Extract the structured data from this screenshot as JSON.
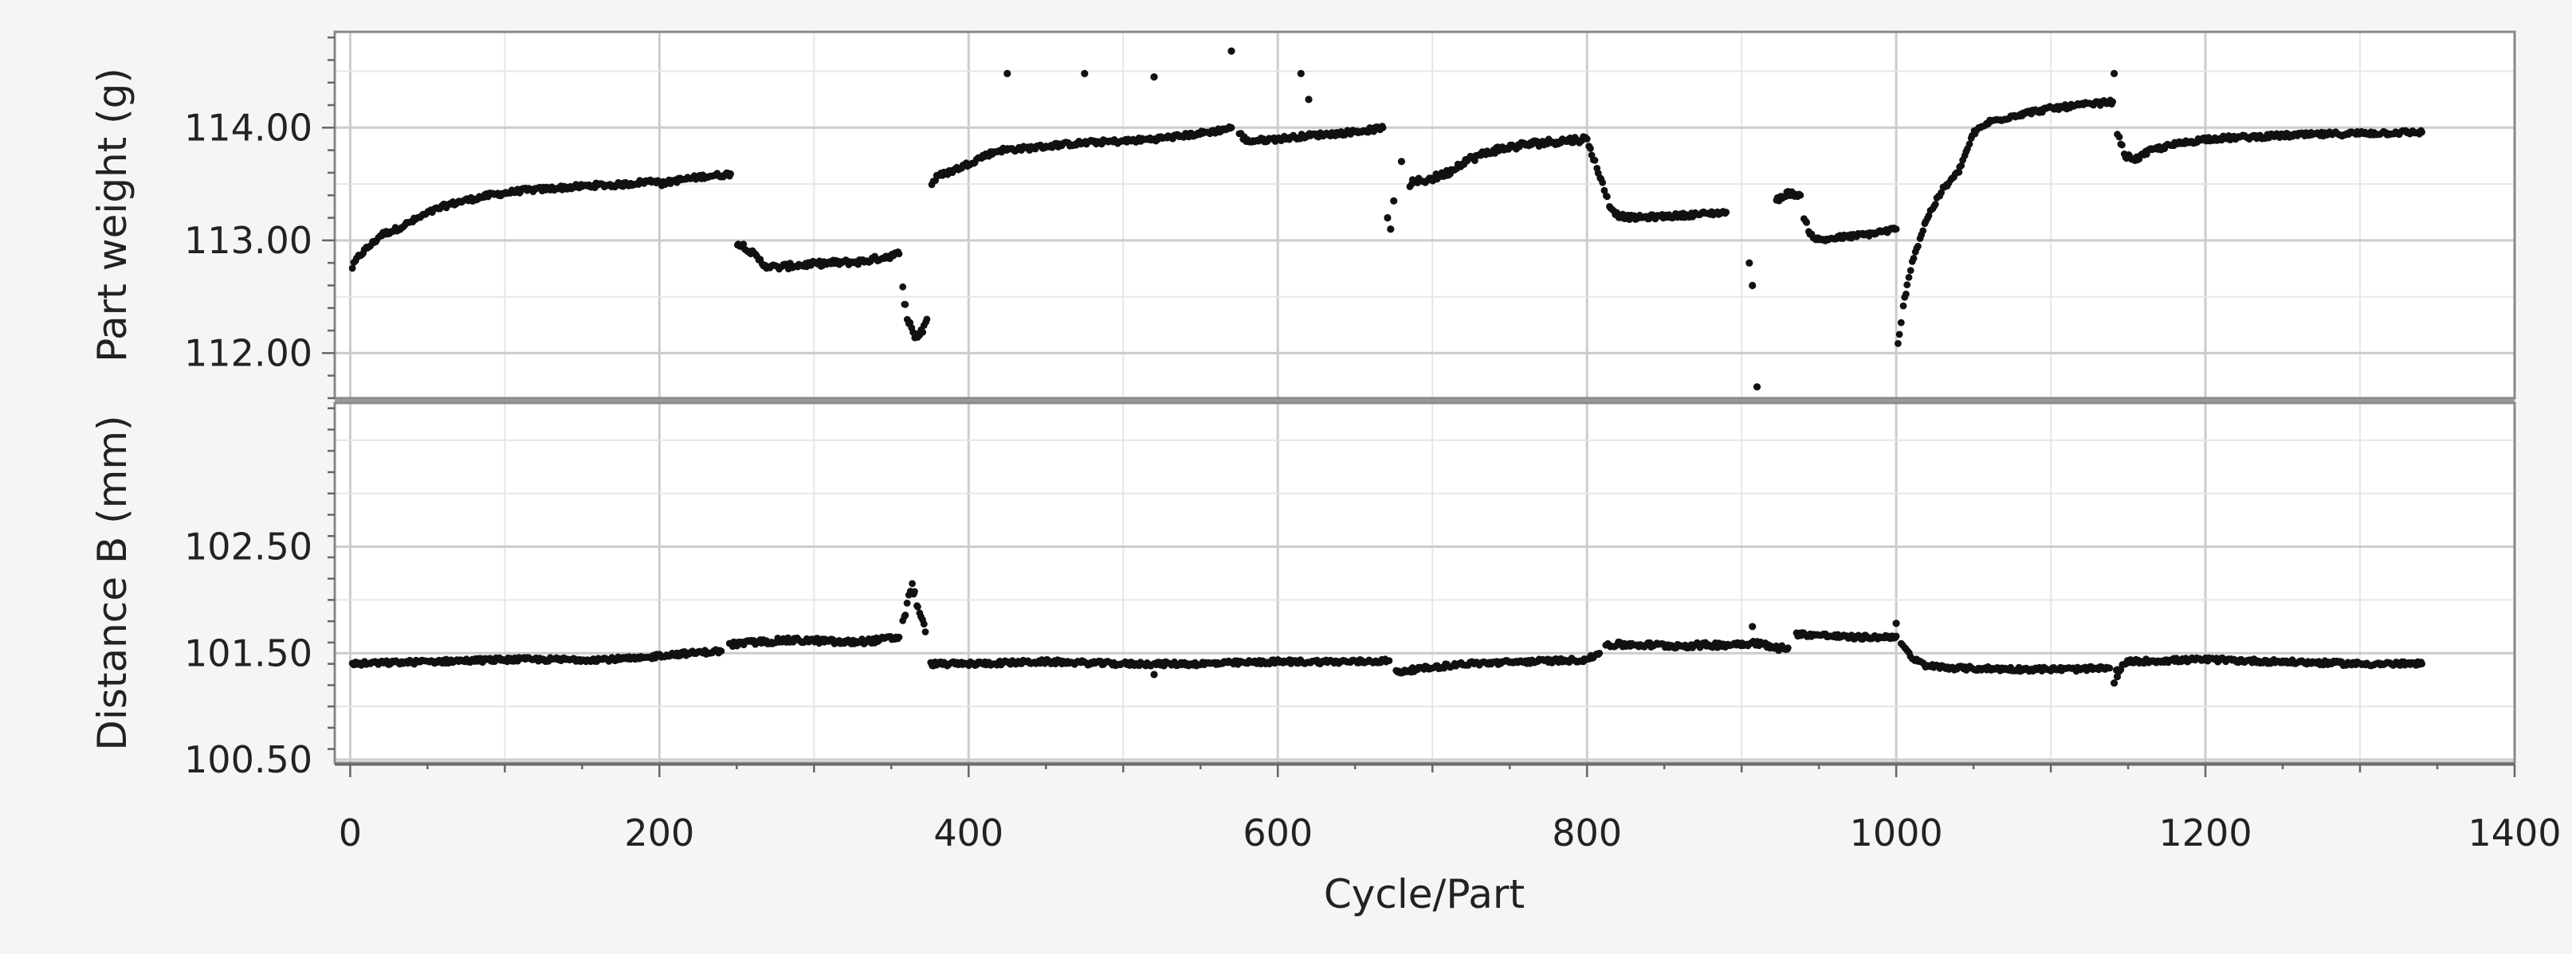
{
  "chart_data": {
    "type": "scatter",
    "xlabel": "Cycle/Part",
    "xlim": [
      -10,
      1400
    ],
    "x_ticks": [
      "0",
      "200",
      "400",
      "600",
      "800",
      "1000",
      "1200",
      "1400"
    ],
    "x_tick_values": [
      0,
      200,
      400,
      600,
      800,
      1000,
      1200,
      1400
    ],
    "grid": true,
    "marker_color": "#111111",
    "panels": [
      {
        "name": "top",
        "ylabel": "Part weight (g)",
        "ylim": [
          111.6,
          114.85
        ],
        "y_ticks": [
          "112.00",
          "113.00",
          "114.00"
        ],
        "y_tick_values": [
          112.0,
          113.0,
          114.0
        ],
        "segments": [
          {
            "x": [
              1,
              5,
              10,
              15,
              20,
              30,
              40,
              50,
              60,
              70,
              80,
              90,
              100,
              110,
              120,
              130,
              140,
              150,
              160,
              170,
              180,
              190,
              199
            ],
            "y": [
              112.75,
              112.85,
              112.92,
              112.98,
              113.05,
              113.1,
              113.17,
              113.24,
              113.3,
              113.34,
              113.37,
              113.4,
              113.42,
              113.44,
              113.45,
              113.46,
              113.47,
              113.48,
              113.49,
              113.49,
              113.5,
              113.52,
              113.53
            ],
            "noise": 0.02
          },
          {
            "x": [
              201,
              210,
              220,
              230,
              240,
              246
            ],
            "y": [
              113.5,
              113.53,
              113.55,
              113.57,
              113.58,
              113.59
            ],
            "noise": 0.02
          },
          {
            "x": [
              250,
              256,
              262,
              268,
              275,
              290,
              310,
              330,
              345,
              355
            ],
            "y": [
              112.98,
              112.94,
              112.86,
              112.78,
              112.76,
              112.78,
              112.8,
              112.81,
              112.85,
              112.88
            ],
            "noise": 0.025
          },
          {
            "x": [
              357,
              360,
              363,
              366,
              370,
              373
            ],
            "y": [
              112.6,
              112.35,
              112.2,
              112.15,
              112.2,
              112.3
            ],
            "noise": 0.04
          },
          {
            "x": [
              376,
              380,
              390,
              400,
              410,
              420,
              440,
              460,
              480,
              500,
              520,
              540,
              560,
              570
            ],
            "y": [
              113.5,
              113.57,
              113.62,
              113.68,
              113.75,
              113.8,
              113.82,
              113.85,
              113.87,
              113.88,
              113.9,
              113.93,
              113.97,
              114.0
            ],
            "noise": 0.02
          },
          {
            "x": [
              575,
              580,
              600,
              620,
              640,
              660,
              668
            ],
            "y": [
              113.95,
              113.88,
              113.9,
              113.93,
              113.95,
              113.98,
              114.0
            ],
            "noise": 0.02
          },
          {
            "x": [
              685,
              690,
              700,
              710,
              720,
              730,
              740,
              760,
              780,
              800
            ],
            "y": [
              113.5,
              113.52,
              113.55,
              113.6,
              113.7,
              113.75,
              113.8,
              113.85,
              113.88,
              113.9
            ],
            "noise": 0.03
          },
          {
            "x": [
              801,
              805,
              810,
              815,
              820,
              830,
              860,
              890
            ],
            "y": [
              113.85,
              113.7,
              113.5,
              113.3,
              113.22,
              113.2,
              113.22,
              113.25
            ],
            "noise": 0.02
          },
          {
            "x": [
              922,
              930,
              938
            ],
            "y": [
              113.35,
              113.42,
              113.4
            ],
            "noise": 0.02
          },
          {
            "x": [
              940,
              945,
              950,
              960,
              980,
              1000
            ],
            "y": [
              113.2,
              113.05,
              113.0,
              113.02,
              113.05,
              113.1
            ],
            "noise": 0.02
          },
          {
            "x": [
              1001,
              1005,
              1010,
              1015,
              1020,
              1030,
              1040,
              1050,
              1060,
              1080,
              1100,
              1120,
              1140
            ],
            "y": [
              112.05,
              112.45,
              112.8,
              113.0,
              113.2,
              113.45,
              113.6,
              113.95,
              114.05,
              114.12,
              114.17,
              114.2,
              114.23
            ],
            "noise": 0.02
          },
          {
            "x": [
              1143,
              1148,
              1155,
              1165,
              1180,
              1200,
              1250,
              1300,
              1340
            ],
            "y": [
              113.95,
              113.75,
              113.72,
              113.8,
              113.85,
              113.9,
              113.93,
              113.95,
              113.96
            ],
            "noise": 0.02
          }
        ],
        "points_x": [
          425,
          475,
          520,
          570,
          615,
          620,
          671,
          673,
          675,
          680,
          905,
          907,
          910,
          1141
        ],
        "points_y": [
          114.48,
          114.48,
          114.45,
          114.68,
          114.48,
          114.25,
          113.2,
          113.1,
          113.35,
          113.7,
          112.8,
          112.6,
          111.7,
          114.48
        ]
      },
      {
        "name": "bottom",
        "ylabel": "Distance B (mm)",
        "ylim": [
          100.47,
          103.85
        ],
        "y_ticks": [
          "100.50",
          "101.50",
          "102.50"
        ],
        "y_tick_values": [
          100.5,
          101.5,
          102.5
        ],
        "segments": [
          {
            "x": [
              1,
              50,
              100,
              150,
              190,
              200,
              220,
              240
            ],
            "y": [
              101.4,
              101.42,
              101.44,
              101.44,
              101.45,
              101.48,
              101.5,
              101.52
            ],
            "noise": 0.02
          },
          {
            "x": [
              245,
              260,
              280,
              300,
              320,
              340,
              355
            ],
            "y": [
              101.58,
              101.6,
              101.62,
              101.62,
              101.6,
              101.62,
              101.65
            ],
            "noise": 0.025
          },
          {
            "x": [
              357,
              360,
              363,
              366,
              369,
              372
            ],
            "y": [
              101.75,
              101.95,
              102.15,
              102.0,
              101.85,
              101.7
            ],
            "noise": 0.04
          },
          {
            "x": [
              375,
              400,
              450,
              500,
              550,
              600,
              650,
              672
            ],
            "y": [
              101.4,
              101.4,
              101.42,
              101.4,
              101.4,
              101.42,
              101.42,
              101.43
            ],
            "noise": 0.02
          },
          {
            "x": [
              676,
              690,
              720,
              760,
              800,
              808
            ],
            "y": [
              101.32,
              101.35,
              101.4,
              101.42,
              101.44,
              101.5
            ],
            "noise": 0.02
          },
          {
            "x": [
              812,
              830,
              860,
              890,
              910,
              920,
              930
            ],
            "y": [
              101.58,
              101.58,
              101.57,
              101.58,
              101.6,
              101.55,
              101.55
            ],
            "noise": 0.025
          },
          {
            "x": [
              935,
              950,
              970,
              990,
              1000
            ],
            "y": [
              101.68,
              101.67,
              101.65,
              101.65,
              101.66
            ],
            "noise": 0.02
          },
          {
            "x": [
              1003,
              1010,
              1020,
              1040,
              1080,
              1120,
              1138
            ],
            "y": [
              101.6,
              101.45,
              101.38,
              101.36,
              101.35,
              101.35,
              101.36
            ],
            "noise": 0.02
          },
          {
            "x": [
              1142,
              1150,
              1170,
              1200,
              1250,
              1300,
              1340
            ],
            "y": [
              101.32,
              101.42,
              101.43,
              101.44,
              101.42,
              101.4,
              101.4
            ],
            "noise": 0.02
          }
        ],
        "points_x": [
          907,
          1000,
          1141,
          1143,
          520
        ],
        "points_y": [
          101.75,
          101.78,
          101.22,
          101.28,
          101.3
        ]
      }
    ]
  }
}
